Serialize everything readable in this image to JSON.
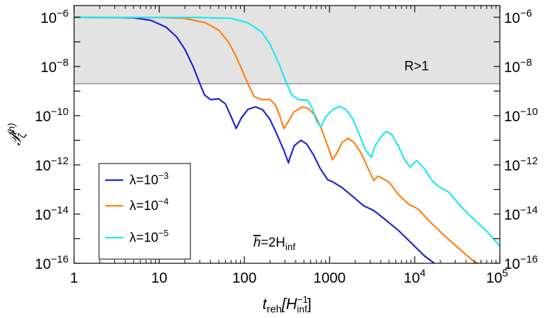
{
  "chart_data": {
    "type": "line",
    "xscale": "log",
    "yscale": "log",
    "xlim": [
      1,
      100000
    ],
    "ylim": [
      1e-16,
      3e-06
    ],
    "xlabel_main": "t",
    "xlabel_sub": "reh",
    "xlabel_unit_open": "[H",
    "xlabel_unit_sup": "−1",
    "xlabel_unit_sub": "inf",
    "xlabel_unit_close": "]",
    "ylabel_main": "𝒫",
    "ylabel_sub": "ζ",
    "ylabel_sup": "(h)",
    "x_ticks": [
      {
        "value": 1,
        "label": "1"
      },
      {
        "value": 10,
        "label": "10"
      },
      {
        "value": 100,
        "label": "100"
      },
      {
        "value": 1000,
        "label": "1000"
      },
      {
        "value": 10000,
        "base": "10",
        "exp": "4"
      },
      {
        "value": 100000,
        "base": "10",
        "exp": "5"
      }
    ],
    "y_ticks": [
      {
        "value": 1e-06,
        "base": "10",
        "exp": "−6"
      },
      {
        "value": 1e-08,
        "base": "10",
        "exp": "−8"
      },
      {
        "value": 1e-10,
        "base": "10",
        "exp": "−10"
      },
      {
        "value": 1e-12,
        "base": "10",
        "exp": "−12"
      },
      {
        "value": 1e-14,
        "base": "10",
        "exp": "−14"
      },
      {
        "value": 1e-16,
        "base": "10",
        "exp": "−16"
      }
    ],
    "excluded_region": {
      "y_min": 2e-09,
      "label": "R>1",
      "color": "#e3e3e3",
      "line_color": "#9a9a9a"
    },
    "annotation": {
      "hbar": "h",
      "text": "=2H",
      "sub": "inf"
    },
    "legend": {
      "position": "lower-left"
    },
    "series": [
      {
        "name_prefix": "λ=10",
        "name_exp": "−3",
        "color": "#1f1fd2",
        "points": [
          [
            1,
            1e-06
          ],
          [
            3,
            9.8e-07
          ],
          [
            5,
            9.5e-07
          ],
          [
            8,
            7.5e-07
          ],
          [
            12,
            4e-07
          ],
          [
            16,
            1.6e-07
          ],
          [
            20,
            5e-08
          ],
          [
            25,
            1e-08
          ],
          [
            30,
            2e-09
          ],
          [
            34,
            7e-10
          ],
          [
            40,
            4.5e-10
          ],
          [
            50,
            4.8e-10
          ],
          [
            60,
            3e-10
          ],
          [
            70,
            9e-11
          ],
          [
            80,
            3e-11
          ],
          [
            92,
            8e-11
          ],
          [
            110,
            1.8e-10
          ],
          [
            135,
            2.3e-10
          ],
          [
            165,
            1.7e-10
          ],
          [
            200,
            7e-11
          ],
          [
            240,
            1.8e-11
          ],
          [
            290,
            4e-12
          ],
          [
            330,
            1.2e-12
          ],
          [
            340,
            1.8e-12
          ],
          [
            385,
            6e-12
          ],
          [
            460,
            1e-11
          ],
          [
            540,
            7e-12
          ],
          [
            650,
            2.5e-12
          ],
          [
            780,
            7e-13
          ],
          [
            950,
            2.5e-13
          ],
          [
            1100,
            2e-13
          ],
          [
            1400,
            1.2e-13
          ],
          [
            1900,
            5e-14
          ],
          [
            2500,
            2.2e-14
          ],
          [
            3300,
            1.4e-14
          ],
          [
            4500,
            6e-15
          ],
          [
            6500,
            2.1e-15
          ],
          [
            9000,
            7e-16
          ],
          [
            13000,
            2e-16
          ],
          [
            17000,
            1e-16
          ]
        ]
      },
      {
        "name_prefix": "λ=10",
        "name_exp": "−4",
        "color": "#ff7f0e",
        "points": [
          [
            1,
            1e-06
          ],
          [
            10,
            9.8e-07
          ],
          [
            20,
            9e-07
          ],
          [
            35,
            6e-07
          ],
          [
            50,
            3e-07
          ],
          [
            65,
            1e-07
          ],
          [
            80,
            2.5e-08
          ],
          [
            90,
            1e-08
          ],
          [
            110,
            2e-09
          ],
          [
            130,
            6e-10
          ],
          [
            160,
            4.5e-10
          ],
          [
            200,
            4.5e-10
          ],
          [
            230,
            2.8e-10
          ],
          [
            260,
            1e-10
          ],
          [
            290,
            3e-11
          ],
          [
            320,
            5e-11
          ],
          [
            380,
            1.4e-10
          ],
          [
            480,
            2.3e-10
          ],
          [
            570,
            1.9e-10
          ],
          [
            680,
            1e-10
          ],
          [
            800,
            3e-11
          ],
          [
            950,
            6e-12
          ],
          [
            1080,
            1.6e-12
          ],
          [
            1200,
            2.7e-12
          ],
          [
            1400,
            8e-12
          ],
          [
            1650,
            1.2e-11
          ],
          [
            1950,
            8e-12
          ],
          [
            2350,
            3e-12
          ],
          [
            2800,
            8e-13
          ],
          [
            3300,
            2.3e-13
          ],
          [
            3700,
            3.5e-13
          ],
          [
            5000,
            2e-13
          ],
          [
            6500,
            6e-14
          ],
          [
            8500,
            2.5e-14
          ],
          [
            11000,
            1.6e-14
          ],
          [
            15000,
            5e-15
          ],
          [
            22000,
            1.4e-15
          ],
          [
            33000,
            4e-16
          ],
          [
            48000,
            1.3e-16
          ],
          [
            55000,
            1e-16
          ]
        ]
      },
      {
        "name_prefix": "λ=10",
        "name_exp": "−5",
        "color": "#1ae8f0",
        "points": [
          [
            1,
            1e-06
          ],
          [
            30,
            9.8e-07
          ],
          [
            70,
            9e-07
          ],
          [
            110,
            6e-07
          ],
          [
            160,
            2.5e-07
          ],
          [
            200,
            8e-08
          ],
          [
            250,
            1.5e-08
          ],
          [
            300,
            3e-09
          ],
          [
            360,
            7e-10
          ],
          [
            430,
            4.5e-10
          ],
          [
            550,
            4.3e-10
          ],
          [
            630,
            2e-10
          ],
          [
            700,
            6e-11
          ],
          [
            790,
            3.5e-11
          ],
          [
            900,
            9e-11
          ],
          [
            1100,
            1.8e-10
          ],
          [
            1300,
            2.4e-10
          ],
          [
            1550,
            1.8e-10
          ],
          [
            1850,
            8e-11
          ],
          [
            2200,
            2e-11
          ],
          [
            2650,
            4e-12
          ],
          [
            3100,
            2e-12
          ],
          [
            3350,
            5e-12
          ],
          [
            3900,
            1.2e-11
          ],
          [
            4600,
            2.3e-11
          ],
          [
            5400,
            1.7e-11
          ],
          [
            6400,
            6e-12
          ],
          [
            7500,
            1.8e-12
          ],
          [
            8800,
            8e-13
          ],
          [
            10500,
            1.5e-12
          ],
          [
            13000,
            7e-13
          ],
          [
            16000,
            2.3e-13
          ],
          [
            19000,
            1.3e-13
          ],
          [
            25000,
            8e-14
          ],
          [
            35000,
            2e-14
          ],
          [
            50000,
            6e-15
          ],
          [
            70000,
            2e-15
          ],
          [
            100000,
            5e-16
          ]
        ]
      }
    ]
  }
}
